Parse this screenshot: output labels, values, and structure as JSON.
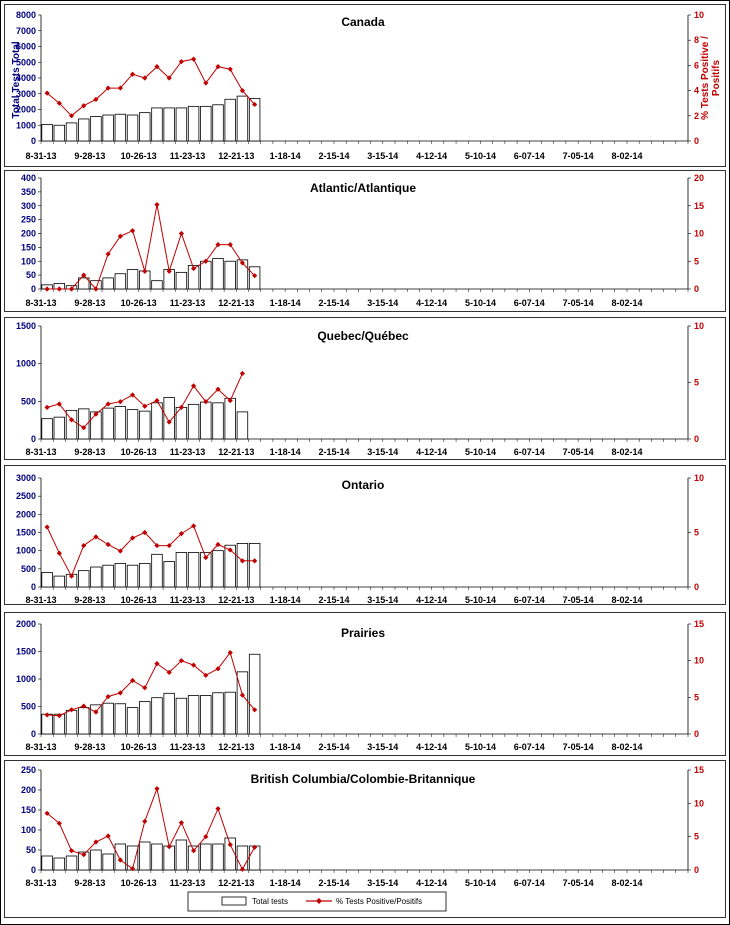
{
  "chart_data": [
    {
      "type": "bar+line",
      "title": "Canada",
      "ylabel_left": "Total Tests Total",
      "ylabel_right": "% Tests Positive / Positifs",
      "ylim_left": [
        0,
        8000
      ],
      "yticks_left": [
        0,
        1000,
        2000,
        3000,
        4000,
        5000,
        6000,
        7000,
        8000
      ],
      "ylim_right": [
        0,
        10
      ],
      "yticks_right": [
        0,
        2,
        4,
        6,
        8,
        10
      ],
      "x_tick_labels": [
        "8-31-13",
        "9-28-13",
        "10-26-13",
        "11-23-13",
        "12-21-13",
        "1-18-14",
        "2-15-14",
        "3-15-14",
        "4-12-14",
        "5-10-14",
        "6-07-14",
        "7-05-14",
        "8-02-14"
      ],
      "series": [
        {
          "name": "Total tests",
          "kind": "bar",
          "axis": "left",
          "values": [
            1050,
            1000,
            1150,
            1400,
            1550,
            1650,
            1700,
            1650,
            1800,
            2100,
            2100,
            2100,
            2200,
            2200,
            2300,
            2650,
            2850,
            2700
          ]
        },
        {
          "name": "% Tests Positive/Positifs",
          "kind": "line",
          "axis": "right",
          "values": [
            3.8,
            3.0,
            2.0,
            2.8,
            3.3,
            4.2,
            4.2,
            5.3,
            5.0,
            5.9,
            5.0,
            6.3,
            6.5,
            4.6,
            5.9,
            5.7,
            4.0,
            2.9
          ]
        }
      ]
    },
    {
      "type": "bar+line",
      "title": "Atlantic/Atlantique",
      "ylim_left": [
        0,
        400
      ],
      "yticks_left": [
        0,
        50,
        100,
        150,
        200,
        250,
        300,
        350,
        400
      ],
      "ylim_right": [
        0,
        20
      ],
      "yticks_right": [
        0,
        5,
        10,
        15,
        20
      ],
      "x_tick_labels": [
        "8-31-13",
        "9-28-13",
        "10-26-13",
        "11-23-13",
        "12-21-13",
        "1-18-14",
        "2-15-14",
        "3-15-14",
        "4-12-14",
        "5-10-14",
        "6-07-14",
        "7-05-14",
        "8-02-14"
      ],
      "series": [
        {
          "name": "Total tests",
          "kind": "bar",
          "axis": "left",
          "values": [
            15,
            20,
            12,
            40,
            30,
            40,
            55,
            70,
            65,
            30,
            70,
            60,
            85,
            100,
            110,
            100,
            105,
            80
          ]
        },
        {
          "name": "% Tests Positive/Positifs",
          "kind": "line",
          "axis": "right",
          "values": [
            0,
            0,
            0,
            2.5,
            0,
            6.3,
            9.5,
            10.5,
            3.2,
            15.2,
            3.2,
            10,
            3.7,
            5,
            8,
            8,
            4.7,
            2.4
          ]
        }
      ]
    },
    {
      "type": "bar+line",
      "title": "Quebec/Québec",
      "ylim_left": [
        0,
        1500
      ],
      "yticks_left": [
        0,
        500,
        1000,
        1500
      ],
      "ylim_right": [
        0,
        10
      ],
      "yticks_right": [
        0,
        5,
        10
      ],
      "x_tick_labels": [
        "8-31-13",
        "9-28-13",
        "10-26-13",
        "11-23-13",
        "12-21-13",
        "1-18-14",
        "2-15-14",
        "3-15-14",
        "4-12-14",
        "5-10-14",
        "6-07-14",
        "7-05-14",
        "8-02-14"
      ],
      "series": [
        {
          "name": "Total tests",
          "kind": "bar",
          "axis": "left",
          "values": [
            270,
            290,
            380,
            400,
            360,
            410,
            430,
            390,
            370,
            480,
            550,
            420,
            460,
            490,
            480,
            540,
            360
          ]
        },
        {
          "name": "% Tests Positive/Positifs",
          "kind": "line",
          "axis": "right",
          "values": [
            2.8,
            3.1,
            1.7,
            1.0,
            2.2,
            3.1,
            3.3,
            3.9,
            2.9,
            3.4,
            1.5,
            2.8,
            4.7,
            3.3,
            4.4,
            3.4,
            5.8
          ]
        }
      ]
    },
    {
      "type": "bar+line",
      "title": "Ontario",
      "ylim_left": [
        0,
        3000
      ],
      "yticks_left": [
        0,
        500,
        1000,
        1500,
        2000,
        2500,
        3000
      ],
      "ylim_right": [
        0,
        10
      ],
      "yticks_right": [
        0,
        5,
        10
      ],
      "x_tick_labels": [
        "8-31-13",
        "9-28-13",
        "10-26-13",
        "11-23-13",
        "12-21-13",
        "1-18-14",
        "2-15-14",
        "3-15-14",
        "4-12-14",
        "5-10-14",
        "6-07-14",
        "7-05-14",
        "8-02-14"
      ],
      "series": [
        {
          "name": "Total tests",
          "kind": "bar",
          "axis": "left",
          "values": [
            400,
            300,
            350,
            450,
            550,
            600,
            650,
            600,
            650,
            900,
            700,
            950,
            950,
            950,
            1000,
            1150,
            1200,
            1200
          ]
        },
        {
          "name": "% Tests Positive/Positifs",
          "kind": "line",
          "axis": "right",
          "values": [
            5.5,
            3.1,
            1.0,
            3.8,
            4.6,
            3.9,
            3.3,
            4.5,
            5.0,
            3.8,
            3.8,
            4.9,
            5.6,
            2.7,
            3.9,
            3.4,
            2.4,
            2.4
          ]
        }
      ]
    },
    {
      "type": "bar+line",
      "title": "Prairies",
      "ylim_left": [
        0,
        2000
      ],
      "yticks_left": [
        0,
        500,
        1000,
        1500,
        2000
      ],
      "ylim_right": [
        0,
        15
      ],
      "yticks_right": [
        0,
        5,
        10,
        15
      ],
      "x_tick_labels": [
        "8-31-13",
        "9-28-13",
        "10-26-13",
        "11-23-13",
        "12-21-13",
        "1-18-14",
        "2-15-14",
        "3-15-14",
        "4-12-14",
        "5-10-14",
        "6-07-14",
        "7-05-14",
        "8-02-14"
      ],
      "series": [
        {
          "name": "Total tests",
          "kind": "bar",
          "axis": "left",
          "values": [
            360,
            360,
            430,
            480,
            530,
            560,
            550,
            480,
            590,
            660,
            740,
            650,
            700,
            700,
            750,
            760,
            1130,
            1450
          ]
        },
        {
          "name": "% Tests Positive/Positifs",
          "kind": "line",
          "axis": "right",
          "values": [
            2.6,
            2.5,
            3.3,
            3.8,
            3.0,
            5.1,
            5.6,
            7.3,
            6.3,
            9.6,
            8.4,
            10.0,
            9.4,
            8.0,
            8.9,
            11.1,
            5.3,
            3.3
          ]
        }
      ]
    },
    {
      "type": "bar+line",
      "title": "British Columbia/Colombie-Britannique",
      "ylim_left": [
        0,
        250
      ],
      "yticks_left": [
        0,
        50,
        100,
        150,
        200,
        250
      ],
      "ylim_right": [
        0,
        15
      ],
      "yticks_right": [
        0,
        5,
        10,
        15
      ],
      "x_tick_labels": [
        "8-31-13",
        "9-28-13",
        "10-26-13",
        "11-23-13",
        "12-21-13",
        "1-18-14",
        "2-15-14",
        "3-15-14",
        "4-12-14",
        "5-10-14",
        "6-07-14",
        "7-05-14",
        "8-02-14"
      ],
      "series": [
        {
          "name": "Total tests",
          "kind": "bar",
          "axis": "left",
          "values": [
            35,
            30,
            35,
            45,
            50,
            40,
            65,
            60,
            70,
            65,
            60,
            75,
            60,
            65,
            65,
            80,
            60,
            60
          ]
        },
        {
          "name": "% Tests Positive/Positifs",
          "kind": "line",
          "axis": "right",
          "values": [
            8.5,
            7.0,
            2.9,
            2.3,
            4.2,
            5.1,
            1.5,
            0.2,
            7.3,
            12.2,
            3.5,
            7.1,
            2.9,
            5.0,
            9.2,
            3.8,
            0.1,
            3.4
          ]
        }
      ]
    }
  ],
  "legend": {
    "bar_label": "Total tests",
    "line_label": "% Tests Positive/Positifs",
    "placement": "bottom-center"
  },
  "colors": {
    "bar_fill": "#ffffff",
    "bar_stroke": "#000000",
    "line": "#c00000",
    "left_axis": "#000080",
    "right_axis": "#c00000"
  }
}
